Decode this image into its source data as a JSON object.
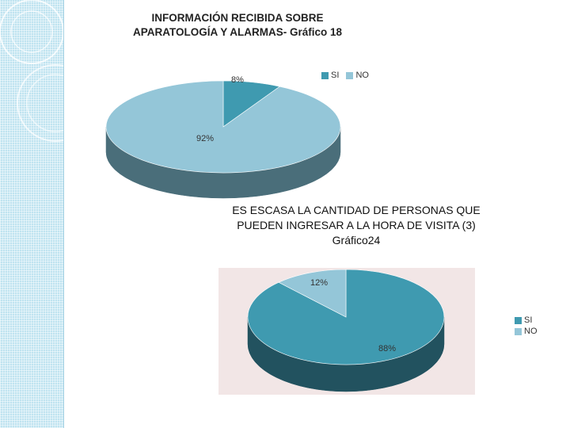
{
  "colors": {
    "si": "#3f9ab0",
    "no": "#94c6d8",
    "si_dark": "#22525f",
    "no_dark": "#4a6e7a"
  },
  "chart_data": [
    {
      "type": "pie",
      "title_line1": "INFORMACIÓN RECIBIDA SOBRE",
      "title_line2": "APARATOLOGÍA Y ALARMAS- Gráfico 18",
      "legend": [
        "SI",
        "NO"
      ],
      "legend_position": "top-right",
      "series": [
        {
          "name": "SI",
          "value": 8,
          "label": "8%"
        },
        {
          "name": "NO",
          "value": 92,
          "label": "92%"
        }
      ]
    },
    {
      "type": "pie",
      "title_line1": "ES ESCASA LA CANTIDAD DE PERSONAS QUE",
      "title_line2": "PUEDEN INGRESAR A LA HORA DE VISITA (3)",
      "title_line3": "Gráfico24",
      "legend": [
        "SI",
        "NO"
      ],
      "legend_position": "right",
      "series": [
        {
          "name": "SI",
          "value": 88,
          "label": "88%"
        },
        {
          "name": "NO",
          "value": 12,
          "label": "12%"
        }
      ]
    }
  ]
}
